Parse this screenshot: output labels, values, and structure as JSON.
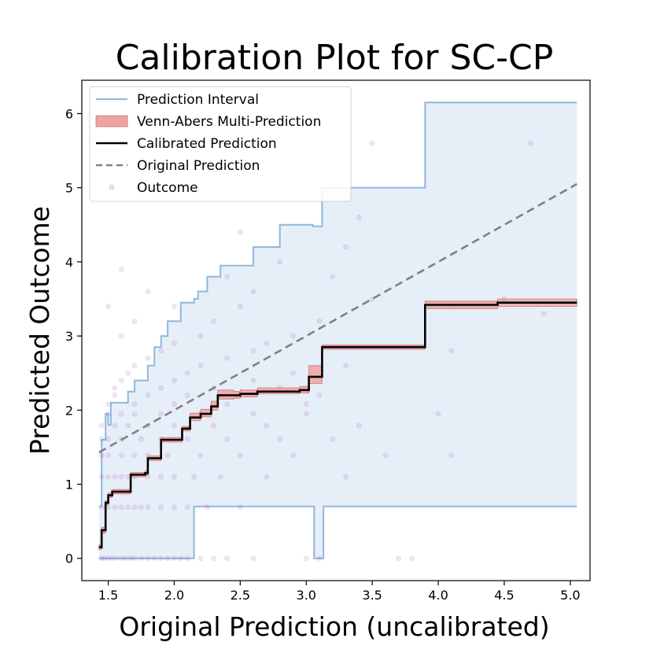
{
  "chart_data": {
    "type": "line",
    "title": "Calibration Plot for SC-CP",
    "xlabel": "Original Prediction (uncalibrated)",
    "ylabel": "Predicted Outcome",
    "xlim": [
      1.3,
      5.15
    ],
    "ylim": [
      -0.3,
      6.45
    ],
    "x_ticks": [
      1.5,
      2.0,
      2.5,
      3.0,
      3.5,
      4.0,
      4.5,
      5.0
    ],
    "x_tick_labels": [
      "1.5",
      "2.0",
      "2.5",
      "3.0",
      "3.5",
      "4.0",
      "4.5",
      "5.0"
    ],
    "y_ticks": [
      0,
      1,
      2,
      3,
      4,
      5,
      6
    ],
    "y_tick_labels": [
      "0",
      "1",
      "2",
      "3",
      "4",
      "5",
      "6"
    ],
    "grid": false,
    "legend_position": "top-left",
    "colors": {
      "interval_line": "#8fb8dc",
      "interval_fill": "#e6eef8",
      "venn_abers": "#eba3a3",
      "venn_abers_edge": "#d9706f",
      "calibrated": "#000000",
      "original": "#808080",
      "outcome": "#9b3ba8"
    },
    "legend": [
      {
        "label": "Prediction Interval",
        "style": "line",
        "color": "#8fb8dc"
      },
      {
        "label": "Venn-Abers Multi-Prediction",
        "style": "patch",
        "color": "#eba3a3"
      },
      {
        "label": "Calibrated Prediction",
        "style": "line",
        "color": "#000000"
      },
      {
        "label": "Original Prediction",
        "style": "dashed",
        "color": "#808080"
      },
      {
        "label": "Outcome",
        "style": "marker",
        "color": "#9b3ba8"
      }
    ],
    "series": [
      {
        "name": "Prediction Interval",
        "upper": [
          [
            1.43,
            0.7
          ],
          [
            1.45,
            1.6
          ],
          [
            1.48,
            1.95
          ],
          [
            1.5,
            1.8
          ],
          [
            1.52,
            2.1
          ],
          [
            1.65,
            2.25
          ],
          [
            1.7,
            2.4
          ],
          [
            1.8,
            2.6
          ],
          [
            1.85,
            2.85
          ],
          [
            1.9,
            3.0
          ],
          [
            1.95,
            3.2
          ],
          [
            2.05,
            3.45
          ],
          [
            2.15,
            3.5
          ],
          [
            2.18,
            3.6
          ],
          [
            2.25,
            3.8
          ],
          [
            2.35,
            3.95
          ],
          [
            2.6,
            4.2
          ],
          [
            2.8,
            4.5
          ],
          [
            3.05,
            4.48
          ],
          [
            3.12,
            5.0
          ],
          [
            3.88,
            5.0
          ],
          [
            3.9,
            6.15
          ],
          [
            5.05,
            6.15
          ]
        ],
        "lower": [
          [
            1.43,
            0.0
          ],
          [
            2.14,
            0.0
          ],
          [
            2.15,
            0.7
          ],
          [
            3.05,
            0.7
          ],
          [
            3.06,
            0.0
          ],
          [
            3.12,
            0.0
          ],
          [
            3.13,
            0.7
          ],
          [
            5.05,
            0.7
          ]
        ]
      },
      {
        "name": "Calibrated Prediction",
        "points": [
          [
            1.43,
            0.15
          ],
          [
            1.45,
            0.38
          ],
          [
            1.48,
            0.75
          ],
          [
            1.5,
            0.85
          ],
          [
            1.53,
            0.9
          ],
          [
            1.67,
            1.13
          ],
          [
            1.78,
            1.15
          ],
          [
            1.8,
            1.35
          ],
          [
            1.9,
            1.6
          ],
          [
            2.04,
            1.6
          ],
          [
            2.06,
            1.75
          ],
          [
            2.12,
            1.9
          ],
          [
            2.2,
            1.95
          ],
          [
            2.28,
            2.05
          ],
          [
            2.33,
            2.2
          ],
          [
            2.45,
            2.2
          ],
          [
            2.5,
            2.22
          ],
          [
            2.63,
            2.25
          ],
          [
            2.95,
            2.27
          ],
          [
            3.02,
            2.45
          ],
          [
            3.12,
            2.85
          ],
          [
            3.88,
            2.85
          ],
          [
            3.9,
            3.42
          ],
          [
            4.4,
            3.42
          ],
          [
            4.45,
            3.45
          ],
          [
            5.05,
            3.45
          ]
        ],
        "band_low": [
          [
            1.43,
            0.12
          ],
          [
            1.45,
            0.34
          ],
          [
            1.48,
            0.72
          ],
          [
            1.5,
            0.82
          ],
          [
            1.53,
            0.87
          ],
          [
            1.67,
            1.1
          ],
          [
            1.78,
            1.12
          ],
          [
            1.8,
            1.32
          ],
          [
            1.9,
            1.57
          ],
          [
            2.04,
            1.57
          ],
          [
            2.06,
            1.72
          ],
          [
            2.12,
            1.86
          ],
          [
            2.2,
            1.91
          ],
          [
            2.28,
            2.0
          ],
          [
            2.33,
            2.15
          ],
          [
            2.45,
            2.16
          ],
          [
            2.5,
            2.18
          ],
          [
            2.63,
            2.22
          ],
          [
            2.95,
            2.23
          ],
          [
            3.02,
            2.36
          ],
          [
            3.12,
            2.82
          ],
          [
            3.88,
            2.82
          ],
          [
            3.9,
            3.37
          ],
          [
            4.4,
            3.37
          ],
          [
            4.45,
            3.4
          ],
          [
            5.05,
            3.4
          ]
        ],
        "band_high": [
          [
            1.43,
            0.18
          ],
          [
            1.45,
            0.42
          ],
          [
            1.48,
            0.78
          ],
          [
            1.5,
            0.88
          ],
          [
            1.53,
            0.93
          ],
          [
            1.67,
            1.16
          ],
          [
            1.78,
            1.18
          ],
          [
            1.8,
            1.38
          ],
          [
            1.9,
            1.63
          ],
          [
            2.04,
            1.63
          ],
          [
            2.06,
            1.78
          ],
          [
            2.12,
            1.96
          ],
          [
            2.2,
            2.01
          ],
          [
            2.28,
            2.12
          ],
          [
            2.33,
            2.27
          ],
          [
            2.45,
            2.25
          ],
          [
            2.5,
            2.27
          ],
          [
            2.63,
            2.3
          ],
          [
            2.95,
            2.32
          ],
          [
            3.02,
            2.6
          ],
          [
            3.12,
            2.88
          ],
          [
            3.88,
            2.88
          ],
          [
            3.9,
            3.47
          ],
          [
            4.4,
            3.47
          ],
          [
            4.45,
            3.5
          ],
          [
            5.05,
            3.5
          ]
        ]
      },
      {
        "name": "Original Prediction",
        "points": [
          [
            1.43,
            1.43
          ],
          [
            5.05,
            5.05
          ]
        ]
      },
      {
        "name": "Outcome",
        "points": [
          [
            1.45,
            0
          ],
          [
            1.47,
            0
          ],
          [
            1.5,
            0
          ],
          [
            1.53,
            0
          ],
          [
            1.56,
            0
          ],
          [
            1.6,
            0
          ],
          [
            1.63,
            0
          ],
          [
            1.67,
            0
          ],
          [
            1.7,
            0
          ],
          [
            1.75,
            0
          ],
          [
            1.8,
            0
          ],
          [
            1.85,
            0
          ],
          [
            1.9,
            0
          ],
          [
            1.95,
            0
          ],
          [
            2.0,
            0
          ],
          [
            2.05,
            0
          ],
          [
            2.1,
            0
          ],
          [
            2.2,
            0
          ],
          [
            2.3,
            0
          ],
          [
            2.4,
            0
          ],
          [
            2.6,
            0
          ],
          [
            3.0,
            0
          ],
          [
            3.1,
            0
          ],
          [
            3.7,
            0
          ],
          [
            3.8,
            0
          ],
          [
            1.45,
            0.69
          ],
          [
            1.5,
            0.69
          ],
          [
            1.55,
            0.69
          ],
          [
            1.6,
            0.69
          ],
          [
            1.65,
            0.69
          ],
          [
            1.7,
            0.69
          ],
          [
            1.75,
            0.69
          ],
          [
            1.8,
            0.69
          ],
          [
            1.9,
            0.69
          ],
          [
            2.0,
            0.69
          ],
          [
            2.1,
            0.69
          ],
          [
            2.25,
            0.69
          ],
          [
            2.5,
            0.69
          ],
          [
            1.45,
            1.1
          ],
          [
            1.5,
            1.1
          ],
          [
            1.55,
            1.1
          ],
          [
            1.6,
            1.1
          ],
          [
            1.65,
            1.1
          ],
          [
            1.7,
            1.1
          ],
          [
            1.8,
            1.1
          ],
          [
            1.9,
            1.1
          ],
          [
            2.0,
            1.1
          ],
          [
            2.15,
            1.1
          ],
          [
            2.35,
            1.1
          ],
          [
            2.7,
            1.1
          ],
          [
            3.3,
            1.1
          ],
          [
            1.45,
            1.39
          ],
          [
            1.5,
            1.39
          ],
          [
            1.6,
            1.39
          ],
          [
            1.7,
            1.39
          ],
          [
            1.8,
            1.39
          ],
          [
            1.95,
            1.39
          ],
          [
            2.2,
            1.39
          ],
          [
            2.5,
            1.39
          ],
          [
            2.9,
            1.39
          ],
          [
            3.6,
            1.39
          ],
          [
            4.1,
            1.39
          ],
          [
            1.45,
            1.61
          ],
          [
            1.5,
            1.61
          ],
          [
            1.6,
            1.61
          ],
          [
            1.75,
            1.61
          ],
          [
            1.9,
            1.61
          ],
          [
            2.1,
            1.61
          ],
          [
            2.4,
            1.61
          ],
          [
            2.8,
            1.61
          ],
          [
            3.2,
            1.61
          ],
          [
            1.45,
            1.79
          ],
          [
            1.55,
            1.79
          ],
          [
            1.65,
            1.79
          ],
          [
            1.8,
            1.79
          ],
          [
            2.0,
            1.79
          ],
          [
            2.3,
            1.79
          ],
          [
            2.7,
            1.79
          ],
          [
            3.4,
            1.79
          ],
          [
            1.5,
            1.95
          ],
          [
            1.6,
            1.95
          ],
          [
            1.7,
            1.95
          ],
          [
            1.9,
            1.95
          ],
          [
            2.2,
            1.95
          ],
          [
            2.6,
            1.95
          ],
          [
            3.0,
            1.95
          ],
          [
            4.0,
            1.95
          ],
          [
            1.5,
            2.08
          ],
          [
            1.7,
            2.08
          ],
          [
            2.0,
            2.08
          ],
          [
            2.4,
            2.08
          ],
          [
            3.0,
            2.08
          ],
          [
            1.55,
            2.2
          ],
          [
            1.8,
            2.2
          ],
          [
            2.1,
            2.2
          ],
          [
            2.5,
            2.2
          ],
          [
            3.1,
            2.2
          ],
          [
            1.55,
            2.3
          ],
          [
            1.9,
            2.3
          ],
          [
            2.3,
            2.3
          ],
          [
            2.8,
            2.3
          ],
          [
            1.6,
            2.4
          ],
          [
            2.0,
            2.4
          ],
          [
            2.6,
            2.4
          ],
          [
            1.65,
            2.5
          ],
          [
            2.1,
            2.5
          ],
          [
            2.9,
            2.5
          ],
          [
            1.7,
            2.6
          ],
          [
            2.2,
            2.6
          ],
          [
            3.3,
            2.6
          ],
          [
            1.8,
            2.7
          ],
          [
            2.4,
            2.7
          ],
          [
            1.9,
            2.8
          ],
          [
            2.6,
            2.8
          ],
          [
            4.1,
            2.8
          ],
          [
            2.0,
            2.9
          ],
          [
            2.7,
            2.9
          ],
          [
            1.6,
            3.0
          ],
          [
            2.2,
            3.0
          ],
          [
            2.9,
            3.0
          ],
          [
            1.7,
            3.2
          ],
          [
            2.3,
            3.2
          ],
          [
            3.1,
            3.2
          ],
          [
            1.5,
            3.4
          ],
          [
            2.0,
            3.4
          ],
          [
            2.5,
            3.4
          ],
          [
            1.8,
            3.6
          ],
          [
            2.6,
            3.6
          ],
          [
            3.5,
            3.5
          ],
          [
            1.6,
            3.9
          ],
          [
            2.4,
            3.8
          ],
          [
            3.2,
            3.8
          ],
          [
            2.8,
            4.0
          ],
          [
            3.3,
            4.2
          ],
          [
            2.5,
            4.4
          ],
          [
            3.4,
            4.6
          ],
          [
            3.5,
            5.6
          ],
          [
            4.7,
            5.6
          ],
          [
            4.1,
            3.4
          ],
          [
            4.5,
            3.5
          ],
          [
            4.8,
            3.3
          ]
        ]
      }
    ]
  }
}
